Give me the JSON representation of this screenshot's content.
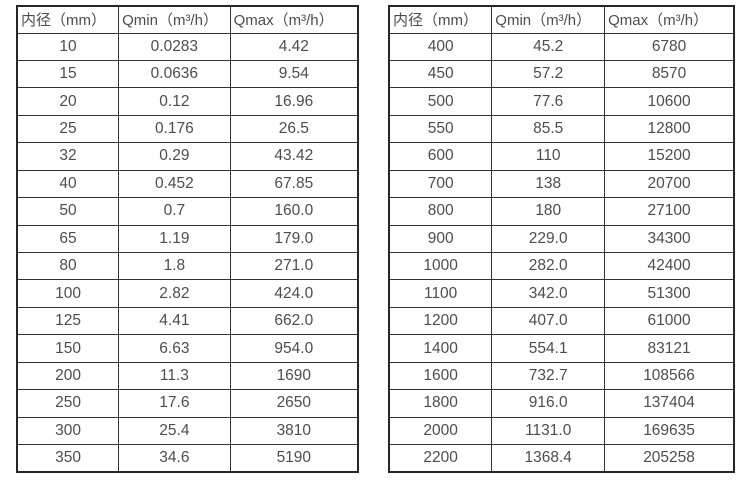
{
  "colors": {
    "background": "#ffffff",
    "border_outer": "#262626",
    "border_inner": "#333333",
    "text": "#4d4d4d"
  },
  "tables": [
    {
      "name": "flow-spec-table-small-diameters",
      "headers": [
        "内径（mm）",
        "Qmin（m³/h）",
        "Qmax（m³/h）"
      ],
      "rows": [
        [
          "10",
          "0.0283",
          "4.42"
        ],
        [
          "15",
          "0.0636",
          "9.54"
        ],
        [
          "20",
          "0.12",
          "16.96"
        ],
        [
          "25",
          "0.176",
          "26.5"
        ],
        [
          "32",
          "0.29",
          "43.42"
        ],
        [
          "40",
          "0.452",
          "67.85"
        ],
        [
          "50",
          "0.7",
          "160.0"
        ],
        [
          "65",
          "1.19",
          "179.0"
        ],
        [
          "80",
          "1.8",
          "271.0"
        ],
        [
          "100",
          "2.82",
          "424.0"
        ],
        [
          "125",
          "4.41",
          "662.0"
        ],
        [
          "150",
          "6.63",
          "954.0"
        ],
        [
          "200",
          "11.3",
          "1690"
        ],
        [
          "250",
          "17.6",
          "2650"
        ],
        [
          "300",
          "25.4",
          "3810"
        ],
        [
          "350",
          "34.6",
          "5190"
        ]
      ]
    },
    {
      "name": "flow-spec-table-large-diameters",
      "headers": [
        "内径（mm）",
        "Qmin（m³/h）",
        "Qmax（m³/h）"
      ],
      "rows": [
        [
          "400",
          "45.2",
          "6780"
        ],
        [
          "450",
          "57.2",
          "8570"
        ],
        [
          "500",
          "77.6",
          "10600"
        ],
        [
          "550",
          "85.5",
          "12800"
        ],
        [
          "600",
          "110",
          "15200"
        ],
        [
          "700",
          "138",
          "20700"
        ],
        [
          "800",
          "180",
          "27100"
        ],
        [
          "900",
          "229.0",
          "34300"
        ],
        [
          "1000",
          "282.0",
          "42400"
        ],
        [
          "1100",
          "342.0",
          "51300"
        ],
        [
          "1200",
          "407.0",
          "61000"
        ],
        [
          "1400",
          "554.1",
          "83121"
        ],
        [
          "1600",
          "732.7",
          "108566"
        ],
        [
          "1800",
          "916.0",
          "137404"
        ],
        [
          "2000",
          "1131.0",
          "169635"
        ],
        [
          "2200",
          "1368.4",
          "205258"
        ]
      ]
    }
  ],
  "cell_names": [
    "diameter-cell",
    "qmin-cell",
    "qmax-cell"
  ]
}
